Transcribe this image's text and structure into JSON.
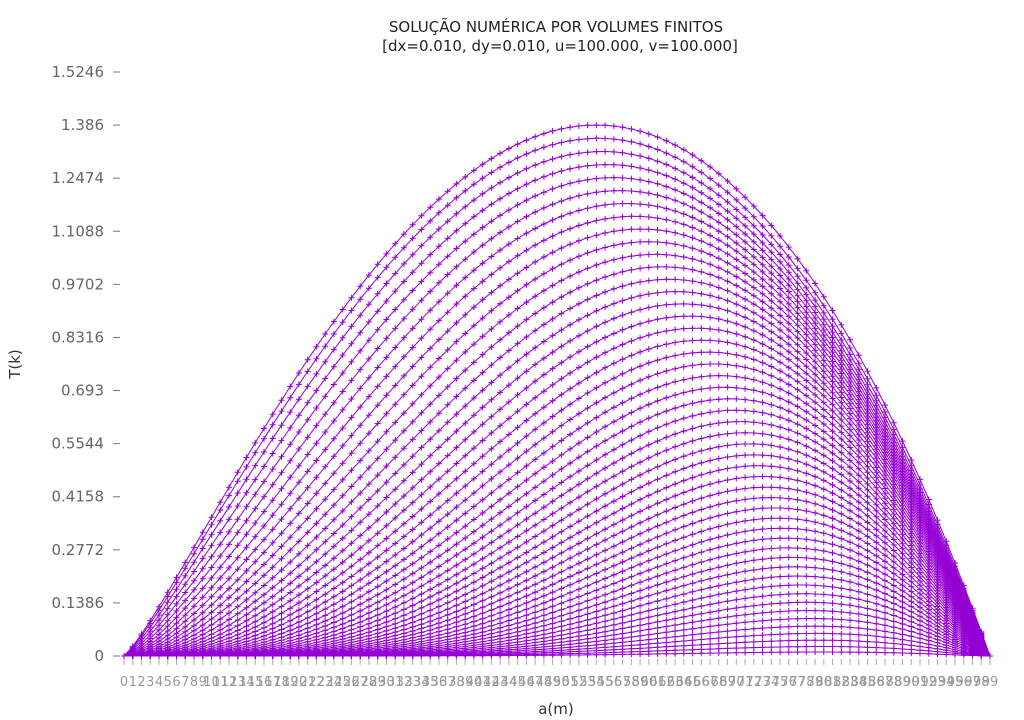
{
  "chart_data": {
    "type": "line",
    "title": "SOLUÇÃO NUMÉRICA POR VOLUMES FINITOS",
    "subtitle": "[dx=0.010, dy=0.010, u=100.000, v=100.000]",
    "xlabel": "a(m)",
    "ylabel": "T(k)",
    "xlim": [
      0,
      99
    ],
    "ylim": [
      0,
      1.5246
    ],
    "ytick_labels": [
      "0",
      "0.1386",
      "0.2772",
      "0.4158",
      "0.5544",
      "0.693",
      "0.8316",
      "0.9702",
      "1.1088",
      "1.2474",
      "1.386",
      "1.5246"
    ],
    "series_count": 50,
    "points_per_series": 100,
    "max_peak": 1.386,
    "series_color": "#9400d3",
    "marker": "plus",
    "grid": false,
    "legend": "none"
  }
}
